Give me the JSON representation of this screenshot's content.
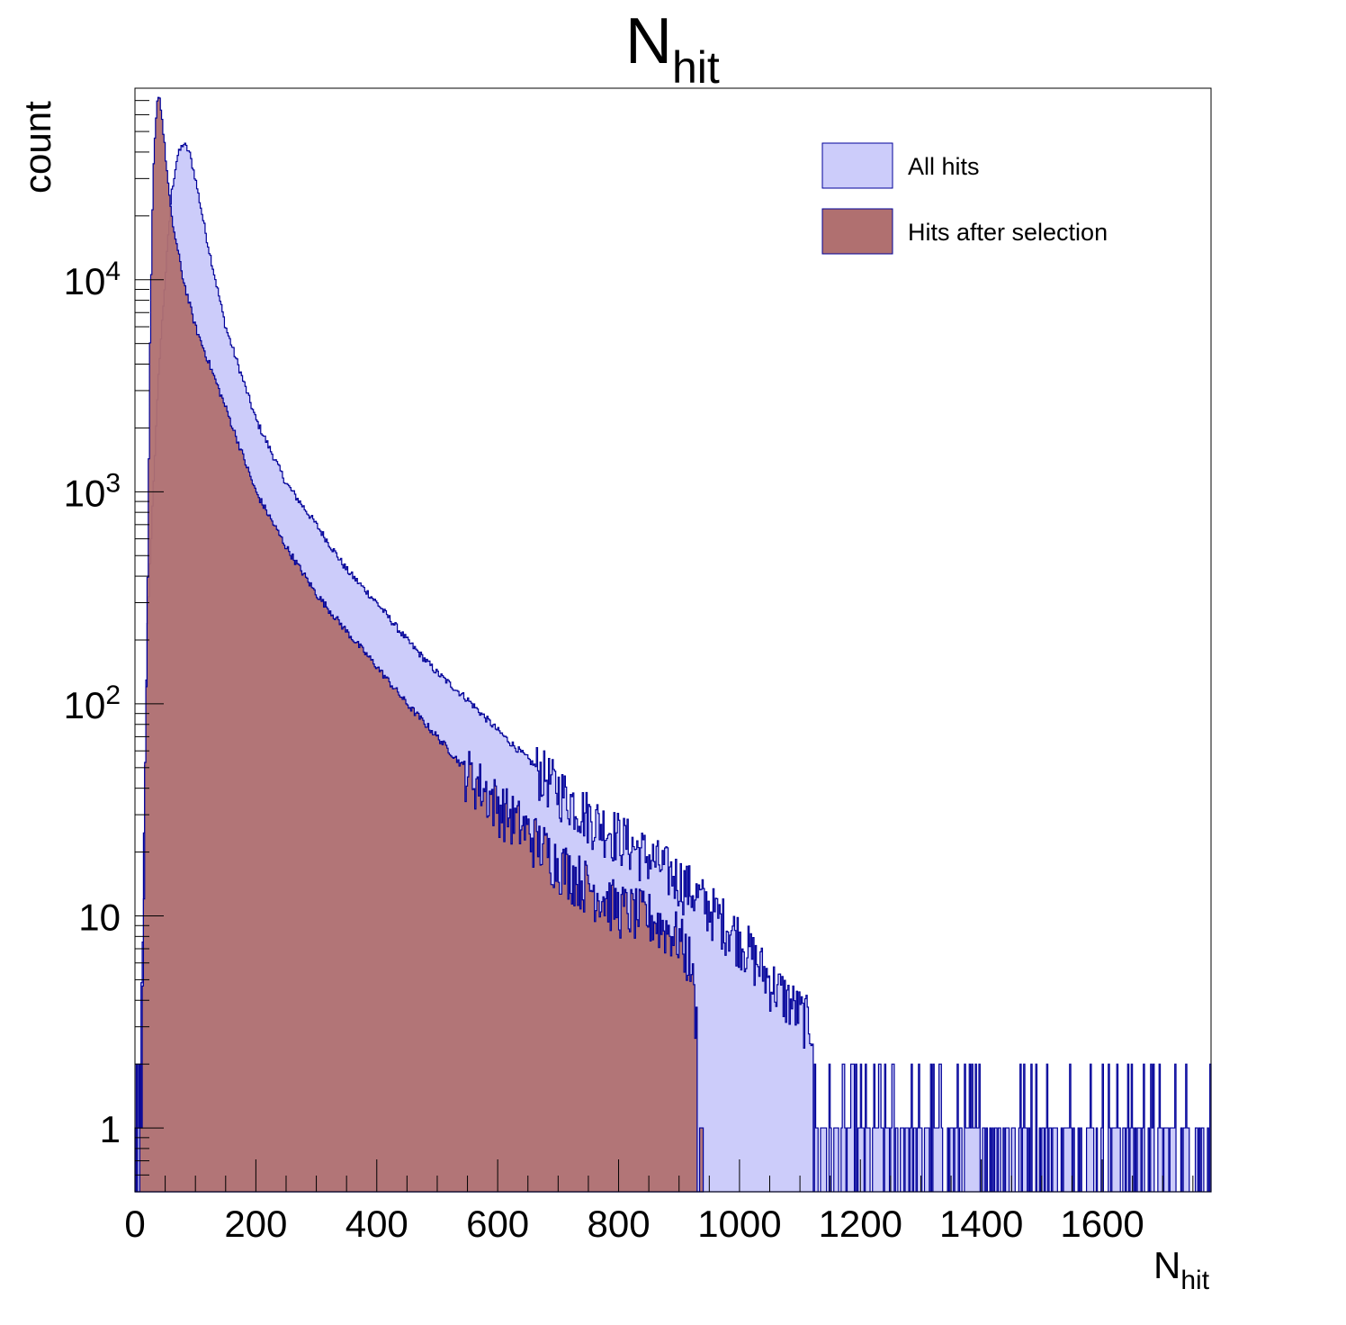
{
  "chart_data": {
    "type": "histogram",
    "title": {
      "main": "N",
      "sub": "hit"
    },
    "xlabel": {
      "main": "N",
      "sub": "hit"
    },
    "ylabel": "count",
    "xlim": [
      0,
      1780
    ],
    "ylim": [
      0.5,
      80000
    ],
    "yscale": "log",
    "grid": false,
    "legend_position": "top-right",
    "x_ticks": [
      "0",
      "200",
      "400",
      "600",
      "800",
      "1000",
      "1200",
      "1400",
      "1600"
    ],
    "y_ticks": [
      {
        "value": 1,
        "label": "1"
      },
      {
        "value": 10,
        "label": "10"
      },
      {
        "value": 100,
        "label": "10",
        "exp": "2"
      },
      {
        "value": 1000,
        "label": "10",
        "exp": "3"
      },
      {
        "value": 10000,
        "label": "10",
        "exp": "4"
      }
    ],
    "series": [
      {
        "name": "All hits",
        "fill": "#ccccfa",
        "line": "#000099",
        "points": [
          [
            0,
            1
          ],
          [
            5,
            2
          ],
          [
            10,
            3
          ],
          [
            15,
            20
          ],
          [
            20,
            200
          ],
          [
            30,
            1000
          ],
          [
            40,
            4000
          ],
          [
            50,
            10000
          ],
          [
            60,
            25000
          ],
          [
            70,
            38000
          ],
          [
            80,
            44000
          ],
          [
            90,
            40000
          ],
          [
            100,
            30000
          ],
          [
            120,
            15000
          ],
          [
            150,
            6000
          ],
          [
            200,
            2200
          ],
          [
            250,
            1100
          ],
          [
            300,
            700
          ],
          [
            350,
            430
          ],
          [
            400,
            300
          ],
          [
            450,
            200
          ],
          [
            500,
            140
          ],
          [
            550,
            105
          ],
          [
            600,
            75
          ],
          [
            650,
            55
          ],
          [
            700,
            40
          ],
          [
            750,
            30
          ],
          [
            800,
            24
          ],
          [
            850,
            19
          ],
          [
            900,
            15
          ],
          [
            950,
            11
          ],
          [
            1000,
            8
          ],
          [
            1050,
            5
          ],
          [
            1100,
            3.5
          ],
          [
            1150,
            2.5
          ],
          [
            1200,
            2
          ],
          [
            1250,
            1.5
          ],
          [
            1300,
            1
          ],
          [
            1400,
            1
          ],
          [
            1500,
            1
          ],
          [
            1600,
            1
          ],
          [
            1700,
            1
          ],
          [
            1780,
            1
          ]
        ]
      },
      {
        "name": "Hits after selection",
        "fill": "#b07070",
        "line": "#000099",
        "points": [
          [
            0,
            0.5
          ],
          [
            10,
            1
          ],
          [
            20,
            200
          ],
          [
            25,
            5000
          ],
          [
            30,
            30000
          ],
          [
            35,
            60000
          ],
          [
            38,
            75000
          ],
          [
            42,
            70000
          ],
          [
            50,
            40000
          ],
          [
            60,
            20000
          ],
          [
            80,
            10000
          ],
          [
            100,
            6000
          ],
          [
            150,
            2500
          ],
          [
            200,
            1000
          ],
          [
            250,
            550
          ],
          [
            300,
            330
          ],
          [
            350,
            220
          ],
          [
            400,
            150
          ],
          [
            450,
            100
          ],
          [
            500,
            70
          ],
          [
            550,
            48
          ],
          [
            600,
            34
          ],
          [
            650,
            25
          ],
          [
            700,
            18
          ],
          [
            750,
            14
          ],
          [
            800,
            11
          ],
          [
            850,
            10
          ],
          [
            900,
            8
          ],
          [
            920,
            6
          ],
          [
            935,
            2
          ],
          [
            940,
            1
          ]
        ]
      }
    ]
  }
}
